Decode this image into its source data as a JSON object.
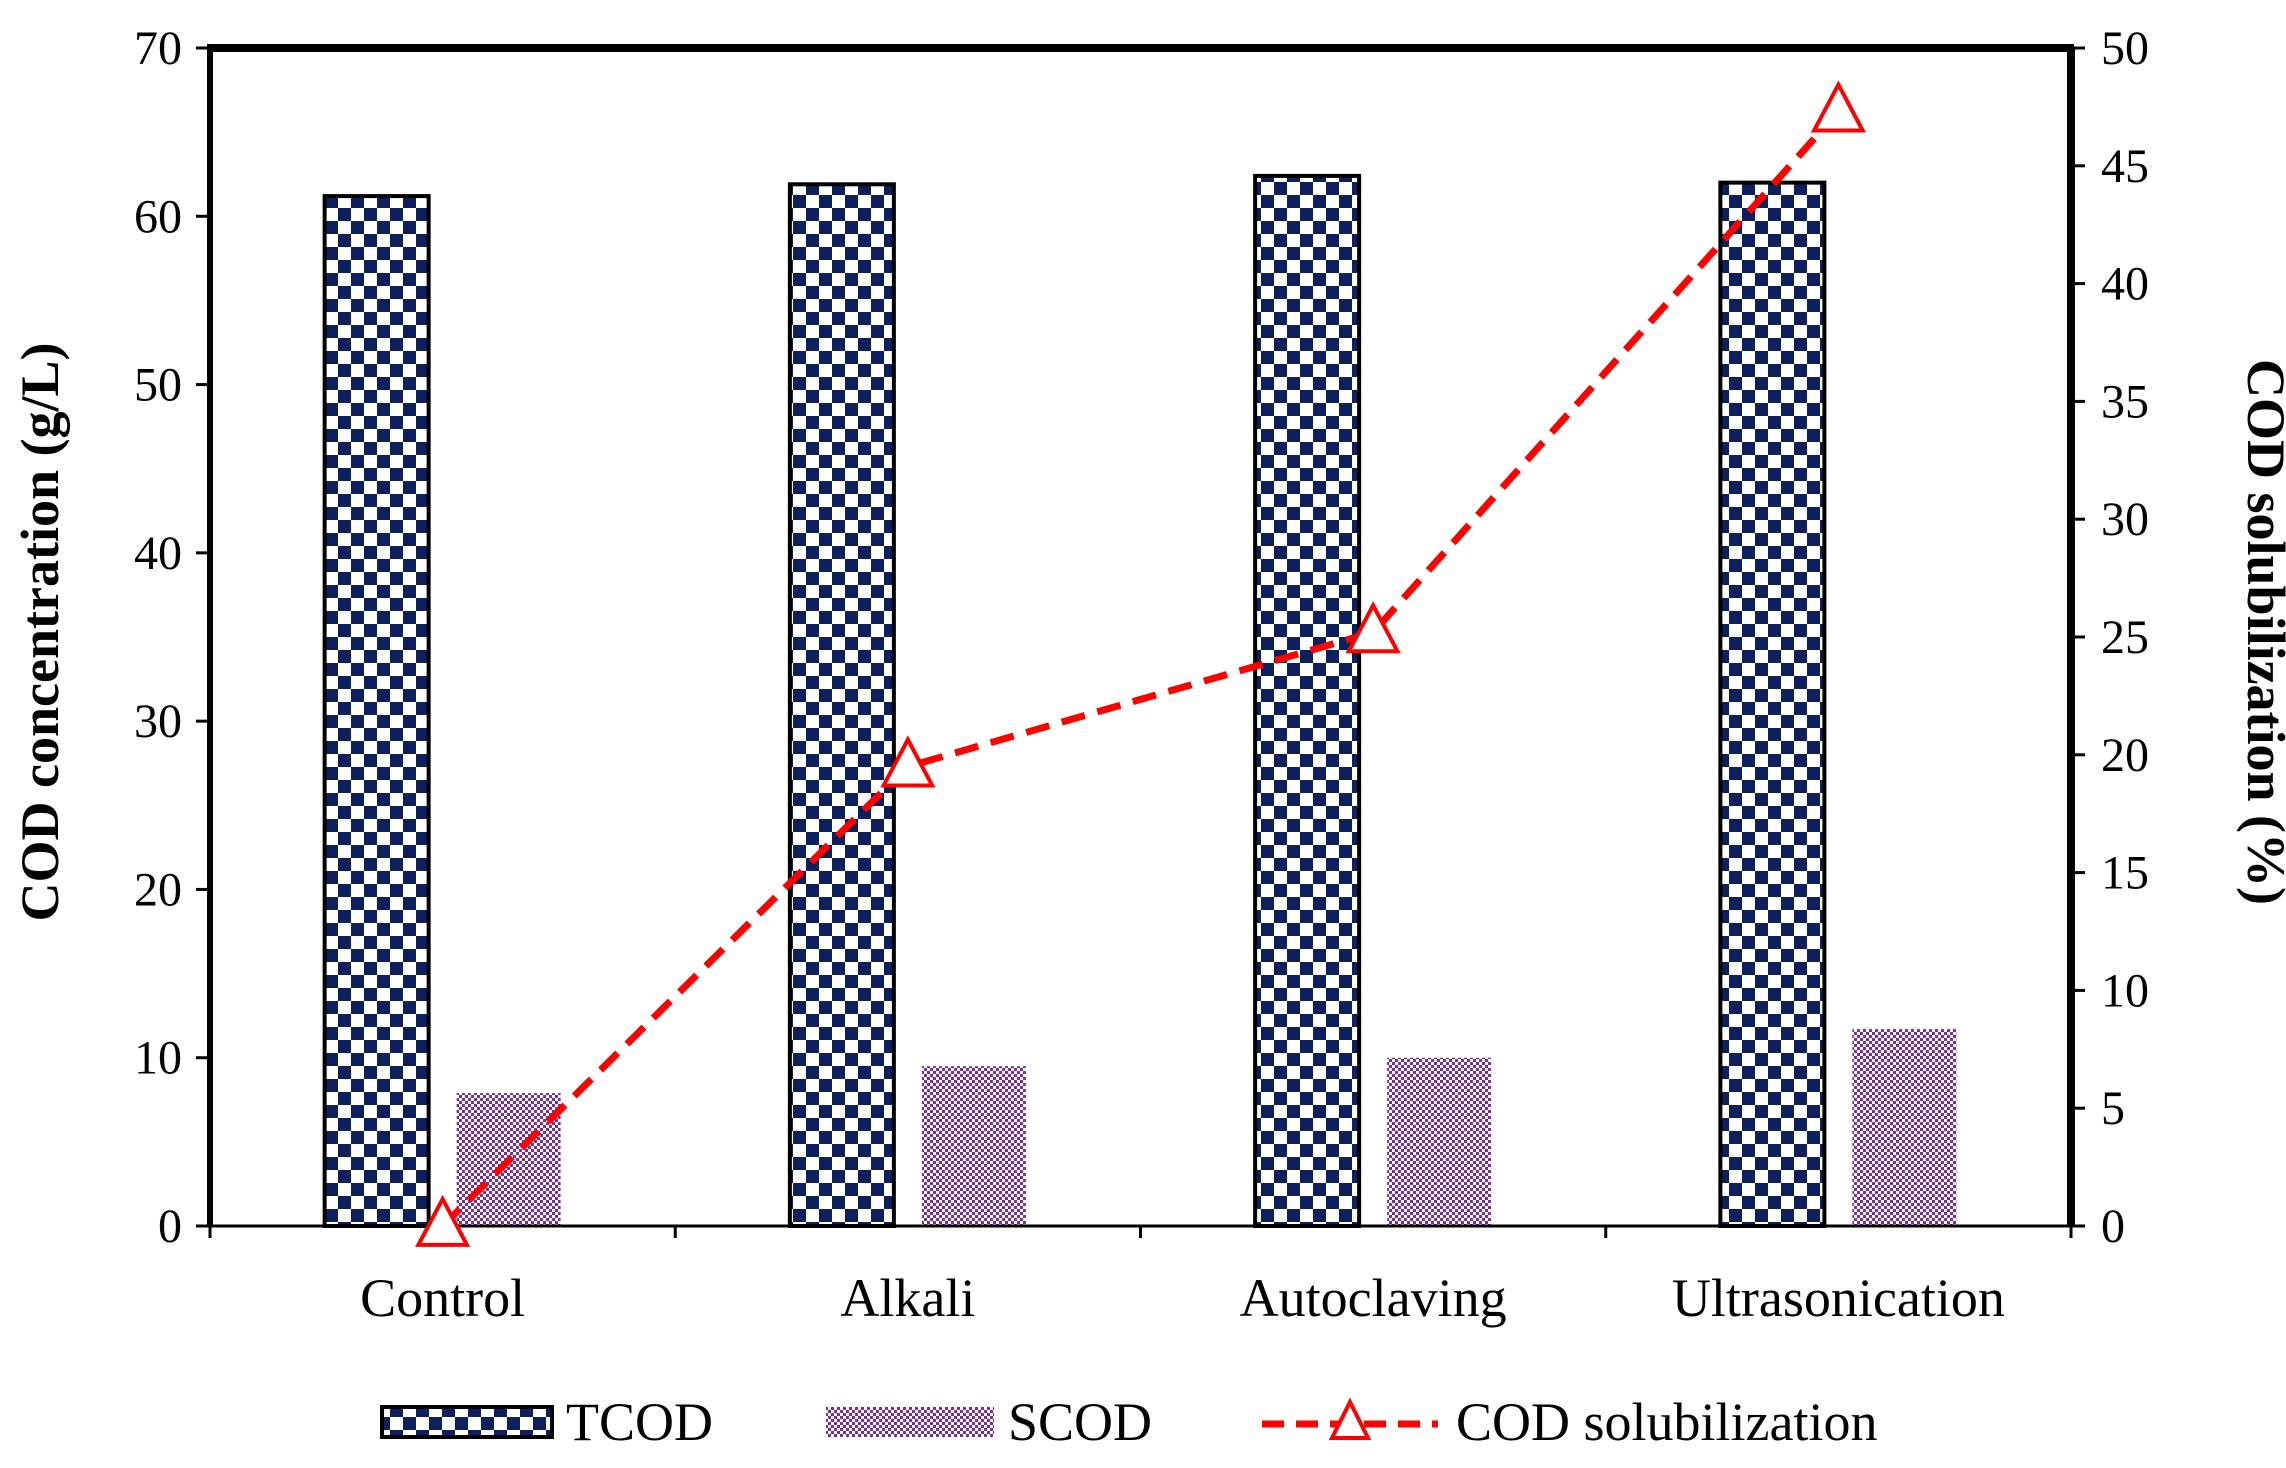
{
  "chart_data": {
    "type": "bar",
    "categories": [
      "Control",
      "Alkali",
      "Autoclaving",
      "Ultrasonication"
    ],
    "series": [
      {
        "name": "TCOD",
        "kind": "bar",
        "axis": "left",
        "values": [
          61.2,
          61.9,
          62.4,
          62.0
        ],
        "color": "#0d1f5c",
        "pattern": "checkerboard"
      },
      {
        "name": "SCOD",
        "kind": "bar",
        "axis": "left",
        "values": [
          7.9,
          9.5,
          10.0,
          11.7
        ],
        "color": "#7b2d9e",
        "pattern": "fine-checker"
      },
      {
        "name": "COD solubilization",
        "kind": "line",
        "axis": "right",
        "values": [
          0,
          19.5,
          25.2,
          47.3
        ],
        "color": "#ff0000",
        "marker": "triangle-open",
        "line_style": "dashed"
      }
    ],
    "y_left": {
      "label": "COD concentration (g/L)",
      "min": 0,
      "max": 70,
      "step": 10
    },
    "y_right": {
      "label": "COD solubilization (%)",
      "min": 0,
      "max": 50,
      "step": 5
    },
    "grid": false,
    "legend_position": "bottom"
  }
}
